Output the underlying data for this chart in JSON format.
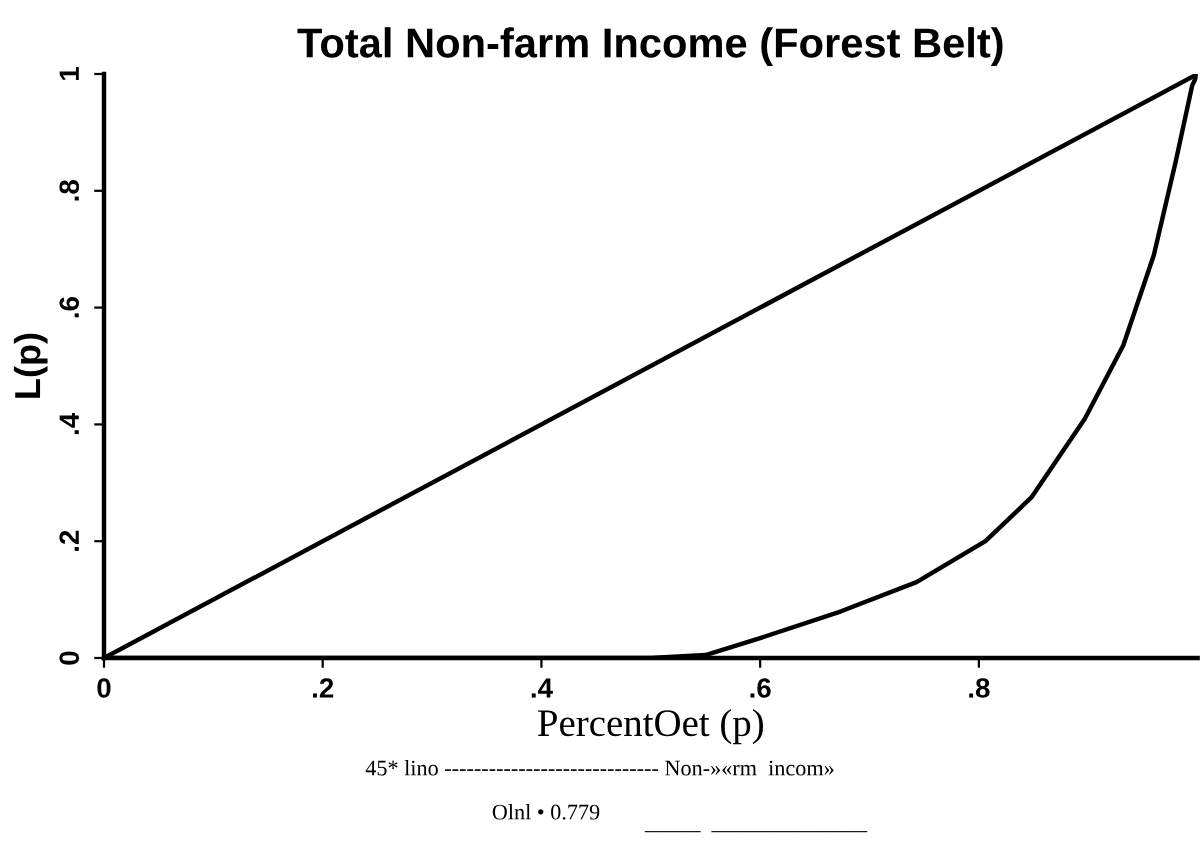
{
  "chart_data": {
    "type": "line",
    "title": "Total Non-farm Income (Forest Belt)",
    "xlabel": "PercentOet (p)",
    "ylabel": "L(p)",
    "annotations": [
      "45* lino ----------------------------- Non-»«rm  incom»",
      "Olnl • 0.779",
      "_____  ______________"
    ],
    "series": [
      {
        "color": "#000000",
        "x": [
          0,
          1
        ],
        "values": [
          0,
          1
        ]
      },
      {
        "color": "#000000",
        "x": [
          0,
          0.5,
          0.55,
          0.6,
          0.674,
          0.743,
          0.806,
          0.848,
          0.897,
          0.932,
          0.96,
          0.98,
          0.995,
          1
        ],
        "values": [
          0,
          0,
          0.005,
          0.034,
          0.08,
          0.13,
          0.2,
          0.275,
          0.41,
          0.535,
          0.69,
          0.85,
          0.98,
          1
        ]
      }
    ],
    "xlim": [
      0,
      1
    ],
    "ylim": [
      0,
      1
    ],
    "xticks": [
      0,
      {
        "value": 0.2,
        "label": ".2"
      },
      {
        "value": 0.4,
        "label": ".4"
      },
      {
        "value": 0.6,
        "label": ".6"
      },
      {
        "value": 0.8,
        "label": ".8"
      }
    ],
    "yticks": [
      0,
      {
        "value": 0.2,
        "label": ".2"
      },
      {
        "value": 0.4,
        "label": ".4"
      },
      {
        "value": 0.6,
        "label": ".6"
      },
      {
        "value": 0.8,
        "label": ".8"
      },
      1
    ],
    "grid": false,
    "legend": false,
    "marker": "none",
    "line_style": "solid"
  }
}
